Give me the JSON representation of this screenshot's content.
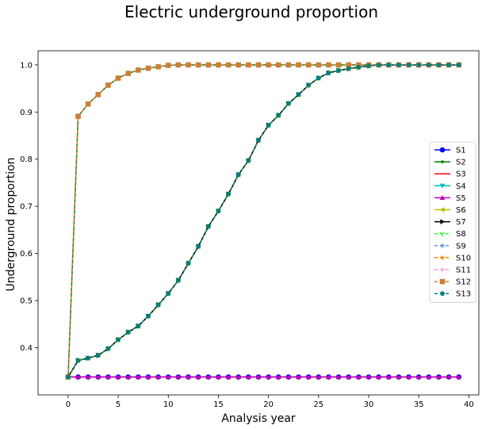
{
  "chart_data": {
    "type": "line",
    "title": "Electric underground proportion",
    "xlabel": "Analysis year",
    "ylabel": "Underground proportion",
    "xlim": [
      -3,
      41
    ],
    "ylim": [
      0.3,
      1.03
    ],
    "xticks": [
      0,
      5,
      10,
      15,
      20,
      25,
      30,
      35,
      40
    ],
    "yticks": [
      0.4,
      0.5,
      0.6,
      0.7,
      0.8,
      0.9,
      1.0
    ],
    "xtick_labels": [
      "0",
      "5",
      "10",
      "15",
      "20",
      "25",
      "30",
      "35",
      "40"
    ],
    "ytick_labels": [
      "0.4",
      "0.5",
      "0.6",
      "0.7",
      "0.8",
      "0.9",
      "1.0"
    ],
    "legend_position": "right",
    "grid": false,
    "x": [
      0,
      1,
      2,
      3,
      4,
      5,
      6,
      7,
      8,
      9,
      10,
      11,
      12,
      13,
      14,
      15,
      16,
      17,
      18,
      19,
      20,
      21,
      22,
      23,
      24,
      25,
      26,
      27,
      28,
      29,
      30,
      31,
      32,
      33,
      34,
      35,
      36,
      37,
      38,
      39
    ],
    "curve_flat": [
      0.338,
      0.338,
      0.338,
      0.338,
      0.338,
      0.338,
      0.338,
      0.338,
      0.338,
      0.338,
      0.338,
      0.338,
      0.338,
      0.338,
      0.338,
      0.338,
      0.338,
      0.338,
      0.338,
      0.338,
      0.338,
      0.338,
      0.338,
      0.338,
      0.338,
      0.338,
      0.338,
      0.338,
      0.338,
      0.338,
      0.338,
      0.338,
      0.338,
      0.338,
      0.338,
      0.338,
      0.338,
      0.338,
      0.338,
      0.338
    ],
    "curve_fast": [
      0.338,
      0.891,
      0.917,
      0.937,
      0.957,
      0.972,
      0.982,
      0.989,
      0.993,
      0.996,
      0.999,
      1.0,
      1.0,
      1.0,
      1.0,
      1.0,
      1.0,
      1.0,
      1.0,
      1.0,
      1.0,
      1.0,
      1.0,
      1.0,
      1.0,
      1.0,
      1.0,
      1.0,
      1.0,
      1.0,
      1.0,
      1.0,
      1.0,
      1.0,
      1.0,
      1.0,
      1.0,
      1.0,
      1.0,
      1.0
    ],
    "curve_slow": [
      0.338,
      0.373,
      0.378,
      0.384,
      0.398,
      0.417,
      0.433,
      0.446,
      0.467,
      0.491,
      0.515,
      0.543,
      0.579,
      0.615,
      0.657,
      0.69,
      0.726,
      0.767,
      0.797,
      0.84,
      0.872,
      0.893,
      0.918,
      0.937,
      0.957,
      0.972,
      0.983,
      0.988,
      0.992,
      0.995,
      0.998,
      1.0,
      1.0,
      1.0,
      1.0,
      1.0,
      1.0,
      1.0,
      1.0,
      1.0
    ],
    "series": [
      {
        "name": "S1",
        "color": "#0000ff",
        "marker": "circle",
        "dash": "",
        "curve": "curve_flat"
      },
      {
        "name": "S2",
        "color": "#008000",
        "marker": "point",
        "dash": "",
        "curve": "curve_fast"
      },
      {
        "name": "S3",
        "color": "#ff0000",
        "marker": "none",
        "dash": "",
        "curve": "curve_flat"
      },
      {
        "name": "S4",
        "color": "#00bfbf",
        "marker": "triangle-down",
        "dash": "",
        "curve": "curve_slow"
      },
      {
        "name": "S5",
        "color": "#bf00bf",
        "marker": "triangle-up",
        "dash": "",
        "curve": "curve_flat"
      },
      {
        "name": "S6",
        "color": "#bfbf00",
        "marker": "triangle-left",
        "dash": "",
        "curve": "curve_slow"
      },
      {
        "name": "S7",
        "color": "#000000",
        "marker": "triangle-right",
        "dash": "",
        "curve": "curve_slow"
      },
      {
        "name": "S8",
        "color": "#33ff33",
        "marker": "tri",
        "dash": "4,3",
        "curve": "curve_slow"
      },
      {
        "name": "S9",
        "color": "#6699dd",
        "marker": "star",
        "dash": "4,3",
        "curve": "curve_fast"
      },
      {
        "name": "S10",
        "color": "#ff8800",
        "marker": "star",
        "dash": "4,3",
        "curve": "curve_slow"
      },
      {
        "name": "S11",
        "color": "#ee99ee",
        "marker": "plus",
        "dash": "4,3",
        "curve": "curve_fast"
      },
      {
        "name": "S12",
        "color": "#cc7f33",
        "marker": "square",
        "dash": "4,3",
        "curve": "curve_fast"
      },
      {
        "name": "S13",
        "color": "#007f7f",
        "marker": "pentagon",
        "dash": "4,3",
        "curve": "curve_slow"
      }
    ]
  }
}
